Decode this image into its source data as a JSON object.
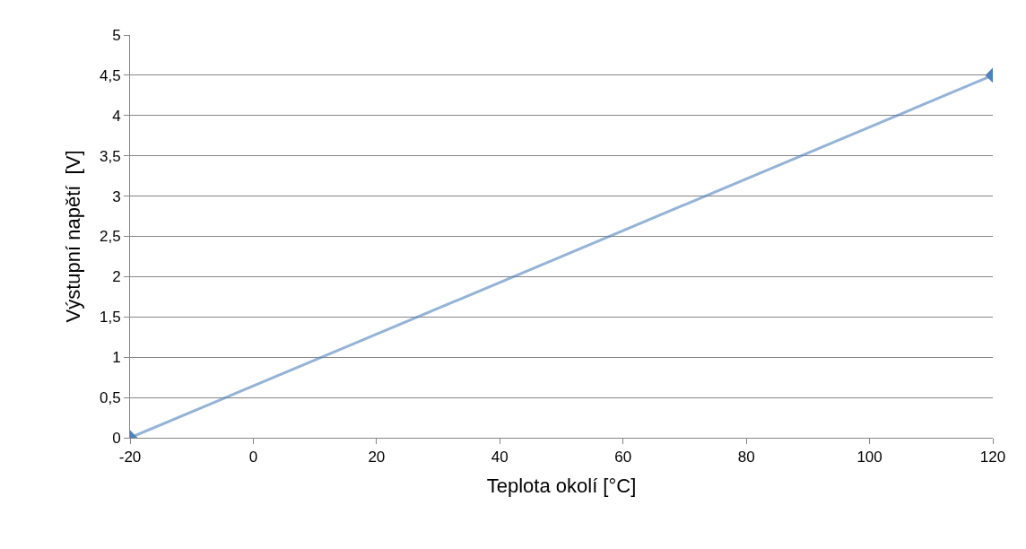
{
  "chart_data": {
    "type": "line",
    "xlabel": "Teplota okolí [°C]",
    "ylabel": "Výstupní napětí  [V]",
    "x": [
      -20,
      120
    ],
    "series": [
      {
        "color": "#4f81bd",
        "values": [
          0,
          4.5
        ]
      }
    ],
    "xlim": [
      -20,
      120
    ],
    "xticks": [
      -20,
      0,
      20,
      40,
      60,
      80,
      100,
      120
    ],
    "ylim": [
      0,
      5
    ],
    "yticks": [
      0,
      {
        "value": 0.5,
        "label": "0,5"
      },
      1,
      {
        "value": 1.5,
        "label": "1,5"
      },
      2,
      {
        "value": 2.5,
        "label": "2,5"
      },
      3,
      {
        "value": 3.5,
        "label": "3,5"
      },
      4,
      {
        "value": 4.5,
        "label": "4,5"
      },
      5
    ],
    "grid": "y",
    "marker": "diamond",
    "legend": false
  }
}
